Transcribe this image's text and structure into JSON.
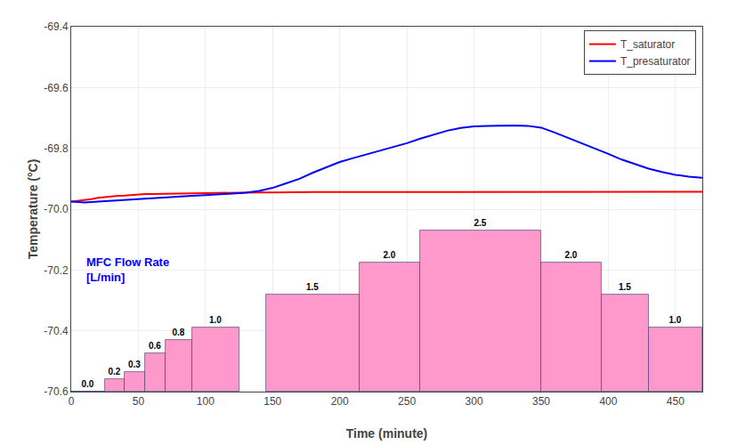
{
  "chart_data": {
    "type": "line",
    "xlabel": "Time (minute)",
    "ylabel": "Temperature (°C)",
    "xlim": [
      0,
      470
    ],
    "ylim": [
      -70.6,
      -69.4
    ],
    "xticks": [
      0,
      50,
      100,
      150,
      200,
      250,
      300,
      350,
      400,
      450
    ],
    "yticks": [
      -70.6,
      -70.4,
      -70.2,
      {
        "value": -70,
        "label": "-70.0"
      },
      -69.8,
      -69.6,
      -69.4
    ],
    "y2lim": [
      0,
      5.660377358490566
    ],
    "y2ticks": [],
    "grid": true,
    "legend": "upper right",
    "annotations": [
      {
        "text": "MFC Flow Rate\n[L/min]",
        "x": 10,
        "y": -70.2,
        "color": "#0000FF"
      }
    ],
    "series": [
      {
        "type": "bar",
        "axis": "y2",
        "color": "#FF99CC",
        "data_labels": true,
        "x_start": [
          0,
          25,
          40,
          55,
          70,
          90,
          145,
          215,
          260,
          350,
          395,
          430
        ],
        "x_end": [
          25,
          40,
          55,
          70,
          90,
          125,
          215,
          260,
          350,
          395,
          430,
          470
        ],
        "values": [
          0.0,
          0.2,
          0.3,
          0.6,
          0.8,
          1.0,
          1.5,
          2.0,
          2.5,
          2.0,
          1.5,
          1.0
        ],
        "value_labels": [
          "0.0",
          "0.2",
          "0.3",
          "0.6",
          "0.8",
          "1.0",
          "1.5",
          "2.0",
          "2.5",
          "2.0",
          "1.5",
          "1.0"
        ]
      },
      {
        "type": "line",
        "name": "T_saturator",
        "color": "#FF0000",
        "x": [
          0,
          5,
          10,
          15,
          20,
          25,
          30,
          35,
          40,
          45,
          50,
          55,
          60,
          65,
          70,
          75,
          80,
          85,
          90,
          100,
          110,
          120,
          130,
          140,
          150,
          160,
          170,
          180,
          190,
          200,
          220,
          240,
          260,
          280,
          300,
          320,
          340,
          360,
          380,
          400,
          420,
          440,
          460,
          470
        ],
        "values": [
          -69.975,
          -69.973,
          -69.97,
          -69.967,
          -69.963,
          -69.96,
          -69.958,
          -69.956,
          -69.955,
          -69.953,
          -69.952,
          -69.95,
          -69.95,
          -69.95,
          -69.949,
          -69.949,
          -69.948,
          -69.948,
          -69.948,
          -69.947,
          -69.946,
          -69.946,
          -69.945,
          -69.945,
          -69.945,
          -69.944,
          -69.944,
          -69.944,
          -69.944,
          -69.944,
          -69.943,
          -69.943,
          -69.943,
          -69.943,
          -69.943,
          -69.943,
          -69.943,
          -69.943,
          -69.943,
          -69.943,
          -69.943,
          -69.943,
          -69.943,
          -69.943
        ]
      },
      {
        "type": "line",
        "name": "T_presaturator",
        "color": "#0000FF",
        "x": [
          0,
          5,
          10,
          20,
          30,
          40,
          50,
          60,
          70,
          80,
          90,
          100,
          110,
          120,
          130,
          140,
          150,
          160,
          170,
          180,
          190,
          200,
          210,
          220,
          230,
          240,
          250,
          260,
          270,
          280,
          290,
          300,
          310,
          320,
          330,
          340,
          350,
          360,
          370,
          380,
          390,
          400,
          410,
          420,
          430,
          440,
          450,
          460,
          470
        ],
        "values": [
          -69.975,
          -69.977,
          -69.978,
          -69.975,
          -69.972,
          -69.97,
          -69.967,
          -69.963,
          -69.96,
          -69.958,
          -69.956,
          -69.954,
          -69.952,
          -69.95,
          -69.946,
          -69.94,
          -69.93,
          -69.915,
          -69.9,
          -69.88,
          -69.862,
          -69.845,
          -69.832,
          -69.82,
          -69.808,
          -69.797,
          -69.783,
          -69.768,
          -69.754,
          -69.742,
          -69.733,
          -69.728,
          -69.726,
          -69.725,
          -69.725,
          -69.726,
          -69.732,
          -69.748,
          -69.765,
          -69.783,
          -69.8,
          -69.818,
          -69.837,
          -69.853,
          -69.867,
          -69.878,
          -69.887,
          -69.893,
          -69.897
        ]
      }
    ]
  }
}
